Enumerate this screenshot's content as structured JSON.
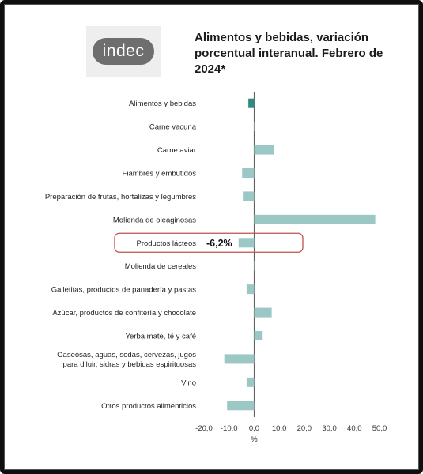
{
  "logo": {
    "text": "indec"
  },
  "colors": {
    "bar": "#9bc8c4",
    "bar_highlight": "#2e8b80",
    "axis": "#555555",
    "callout": "#c0504d"
  },
  "callout": {
    "category": "Productos lácteos",
    "label": "-6,2%"
  },
  "chart_data": {
    "type": "bar",
    "orientation": "horizontal",
    "title": "Alimentos y bebidas, variación porcentual interanual. Febrero de 2024*",
    "xlabel": "%",
    "xlim": [
      -20,
      50
    ],
    "xticks": [
      "-20,0",
      "-10,0",
      "0,0",
      "10,0",
      "20,0",
      "30,0",
      "40,0",
      "50,0"
    ],
    "categories": [
      "Alimentos y bebidas",
      "Carne vacuna",
      "Carne aviar",
      "Fiambres y embutidos",
      "Preparación de frutas, hortalizas y legumbres",
      "Molienda de oleaginosas",
      "Productos lácteos",
      "Molienda de cereales",
      "Galletitas, productos de panadería y pastas",
      "Azúcar, productos de confitería y chocolate",
      "Yerba mate, té y café",
      "Gaseosas, aguas, sodas, cervezas, jugos para diluir, sidras y bebidas espirituosas",
      "Vino",
      "Otros productos alimenticios"
    ],
    "category_lines": [
      [
        "Alimentos y bebidas"
      ],
      [
        "Carne vacuna"
      ],
      [
        "Carne aviar"
      ],
      [
        "Fiambres y embutidos"
      ],
      [
        "Preparación de frutas, hortalizas y legumbres"
      ],
      [
        "Molienda de oleaginosas"
      ],
      [
        "Productos lácteos"
      ],
      [
        "Molienda de cereales"
      ],
      [
        "Galletitas, productos de panadería y pastas"
      ],
      [
        "Azúcar, productos de confitería y chocolate"
      ],
      [
        "Yerba mate, té y café"
      ],
      [
        "Gaseosas, aguas, sodas, cervezas, jugos",
        "para diluir, sidras y bebidas espirituosas"
      ],
      [
        "Vino"
      ],
      [
        "Otros productos alimenticios"
      ]
    ],
    "values": [
      -2.3,
      0.5,
      7.8,
      -4.8,
      -4.5,
      48.3,
      -6.2,
      0.3,
      -3.0,
      7.0,
      3.4,
      -11.9,
      -3.0,
      -10.8
    ],
    "grid": false
  }
}
